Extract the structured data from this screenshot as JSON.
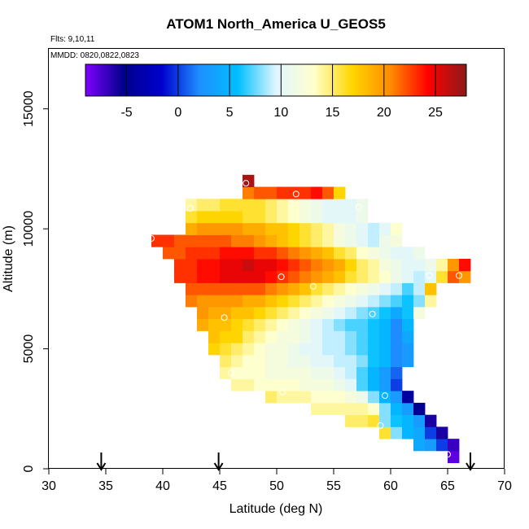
{
  "chart_data": {
    "type": "heatmap",
    "title": "ATOM1 North_America U_GEOS5",
    "flights_label": "Flts: 9,10,11",
    "dates_label": "MMDD: 0820,0822,0823",
    "xlabel": "Latitude (deg N)",
    "ylabel": "Altitude (m)",
    "xlim": [
      30,
      70
    ],
    "ylim": [
      0,
      17500
    ],
    "x_ticks": [
      "30",
      "35",
      "40",
      "45",
      "50",
      "55",
      "60",
      "65",
      "70"
    ],
    "y_ticks": [
      "0",
      "5000",
      "10000",
      "15000"
    ],
    "colorbar": {
      "min": -9,
      "max": 28,
      "ticks": [
        "-5",
        "0",
        "5",
        "10",
        "15",
        "20",
        "25"
      ],
      "colors": [
        "#7f00ff",
        "#00008b",
        "#0000cd",
        "#1e90ff",
        "#00bfff",
        "#e0f6ff",
        "#ffffcc",
        "#ffd700",
        "#ff8c00",
        "#ff0000",
        "#8b1a1a"
      ]
    },
    "cell_width_deg": 1.0,
    "cell_height_m": 500,
    "grid": {
      "x_start": 39,
      "y_start": 500,
      "rows": [
        {
          "alt": 500,
          "x0": 65,
          "values": [
            -8
          ]
        },
        {
          "alt": 1000,
          "x0": 62,
          "values": [
            4,
            3,
            0,
            -7
          ]
        },
        {
          "alt": 1500,
          "x0": 59,
          "values": [
            16,
            8,
            5,
            4,
            0,
            -6
          ]
        },
        {
          "alt": 2000,
          "x0": 56,
          "values": [
            15,
            15,
            16,
            8,
            6,
            5,
            3,
            -6
          ]
        },
        {
          "alt": 2500,
          "x0": 53,
          "values": [
            14,
            14,
            14,
            14,
            14,
            13,
            8,
            5,
            3,
            -5
          ]
        },
        {
          "alt": 3000,
          "x0": 49,
          "values": [
            15,
            14,
            14,
            14,
            13,
            13,
            13,
            12,
            11,
            8,
            5,
            3,
            -4
          ]
        },
        {
          "alt": 3500,
          "x0": 46,
          "values": [
            14,
            14,
            13,
            13,
            13,
            13,
            12,
            12,
            12,
            11,
            10,
            7,
            5,
            3,
            0
          ]
        },
        {
          "alt": 4000,
          "x0": 45,
          "values": [
            14,
            13,
            13,
            13,
            12,
            12,
            12,
            12,
            11,
            11,
            10,
            9,
            7,
            5,
            3,
            1
          ]
        },
        {
          "alt": 4500,
          "x0": 45,
          "values": [
            15,
            14,
            13,
            13,
            12,
            12,
            11,
            11,
            10,
            10,
            9,
            9,
            8,
            6,
            5,
            2,
            3
          ]
        },
        {
          "alt": 5000,
          "x0": 44,
          "values": [
            17,
            16,
            15,
            14,
            13,
            12,
            12,
            11,
            10,
            10,
            9,
            9,
            8,
            7,
            6,
            5,
            2,
            3
          ]
        },
        {
          "alt": 5500,
          "x0": 44,
          "values": [
            18,
            17,
            17,
            15,
            14,
            13,
            12,
            12,
            11,
            10,
            9,
            9,
            8,
            7,
            6,
            5,
            2,
            4
          ]
        },
        {
          "alt": 6000,
          "x0": 43,
          "values": [
            19,
            18,
            18,
            17,
            16,
            15,
            14,
            13,
            12,
            11,
            10,
            9,
            8,
            7,
            7,
            6,
            5,
            2,
            5
          ]
        },
        {
          "alt": 6500,
          "x0": 43,
          "values": [
            20,
            19,
            19,
            18,
            18,
            17,
            16,
            15,
            14,
            13,
            12,
            11,
            10,
            9,
            8,
            7,
            6,
            4,
            6,
            12
          ]
        },
        {
          "alt": 7000,
          "x0": 42,
          "values": [
            21,
            20,
            20,
            20,
            20,
            19,
            19,
            18,
            17,
            16,
            15,
            14,
            13,
            12,
            11,
            10,
            9,
            8,
            7,
            6,
            8,
            14
          ]
        },
        {
          "alt": 7500,
          "x0": 42,
          "values": [
            22,
            22,
            22,
            22,
            22,
            22,
            22,
            21,
            20,
            19,
            18,
            16,
            15,
            14,
            13,
            12,
            11,
            10,
            9,
            7,
            9,
            18
          ]
        },
        {
          "alt": 8000,
          "x0": 41,
          "values": [
            23,
            23,
            24,
            24,
            25,
            25,
            25,
            25,
            24,
            23,
            22,
            21,
            20,
            19,
            18,
            16,
            15,
            14,
            13,
            11,
            10,
            9,
            10,
            16,
            22,
            20
          ]
        },
        {
          "alt": 8500,
          "x0": 41,
          "values": [
            23,
            23,
            24,
            24,
            25,
            25,
            26,
            25,
            25,
            24,
            23,
            22,
            21,
            20,
            19,
            17,
            15,
            14,
            12,
            11,
            10,
            10,
            11,
            14,
            20,
            24
          ]
        },
        {
          "alt": 9000,
          "x0": 40,
          "values": [
            22,
            22,
            23,
            23,
            23,
            24,
            24,
            24,
            23,
            23,
            22,
            21,
            20,
            19,
            18,
            16,
            15,
            13,
            12,
            11,
            10,
            10,
            11
          ]
        },
        {
          "alt": 9500,
          "x0": 39,
          "values": [
            23,
            23,
            22,
            22,
            22,
            22,
            22,
            21,
            21,
            20,
            19,
            18,
            17,
            16,
            15,
            14,
            12,
            11,
            10,
            9,
            11,
            12
          ]
        },
        {
          "alt": 10000,
          "x0": 42,
          "values": [
            19,
            20,
            20,
            20,
            20,
            19,
            19,
            18,
            18,
            17,
            16,
            15,
            14,
            12,
            11,
            10,
            9,
            10,
            13
          ]
        },
        {
          "alt": 10500,
          "x0": 42,
          "values": [
            16,
            17,
            17,
            17,
            17,
            16,
            16,
            15,
            14,
            13,
            12,
            11,
            10,
            10,
            10,
            11
          ]
        },
        {
          "alt": 11000,
          "x0": 42,
          "values": [
            14,
            15,
            15,
            16,
            16,
            16,
            16,
            15,
            14,
            13,
            12,
            11,
            10,
            10,
            10,
            11
          ]
        },
        {
          "alt": 11500,
          "x0": 47,
          "values": [
            21,
            22,
            22,
            23,
            23,
            23,
            24,
            22,
            17
          ]
        },
        {
          "alt": 12000,
          "x0": 47,
          "values": [
            27
          ]
        }
      ]
    },
    "markers": [
      {
        "lat": 47.3,
        "alt": 11900
      },
      {
        "lat": 51.7,
        "alt": 11450
      },
      {
        "lat": 42.4,
        "alt": 10850
      },
      {
        "lat": 57.2,
        "alt": 10900
      },
      {
        "lat": 39.0,
        "alt": 9600
      },
      {
        "lat": 50.4,
        "alt": 8000
      },
      {
        "lat": 53.2,
        "alt": 7600
      },
      {
        "lat": 63.4,
        "alt": 8050
      },
      {
        "lat": 66.0,
        "alt": 8050
      },
      {
        "lat": 45.4,
        "alt": 6300
      },
      {
        "lat": 58.4,
        "alt": 6450
      },
      {
        "lat": 64.3,
        "alt": 6350
      },
      {
        "lat": 46.0,
        "alt": 4000
      },
      {
        "lat": 50.5,
        "alt": 3200
      },
      {
        "lat": 59.5,
        "alt": 3050
      },
      {
        "lat": 65.3,
        "alt": 2150
      },
      {
        "lat": 59.1,
        "alt": 1800
      },
      {
        "lat": 65.0,
        "alt": 600
      }
    ],
    "arrows": [
      {
        "lat": 34.6
      },
      {
        "lat": 44.9
      },
      {
        "lat": 67.0
      }
    ]
  }
}
